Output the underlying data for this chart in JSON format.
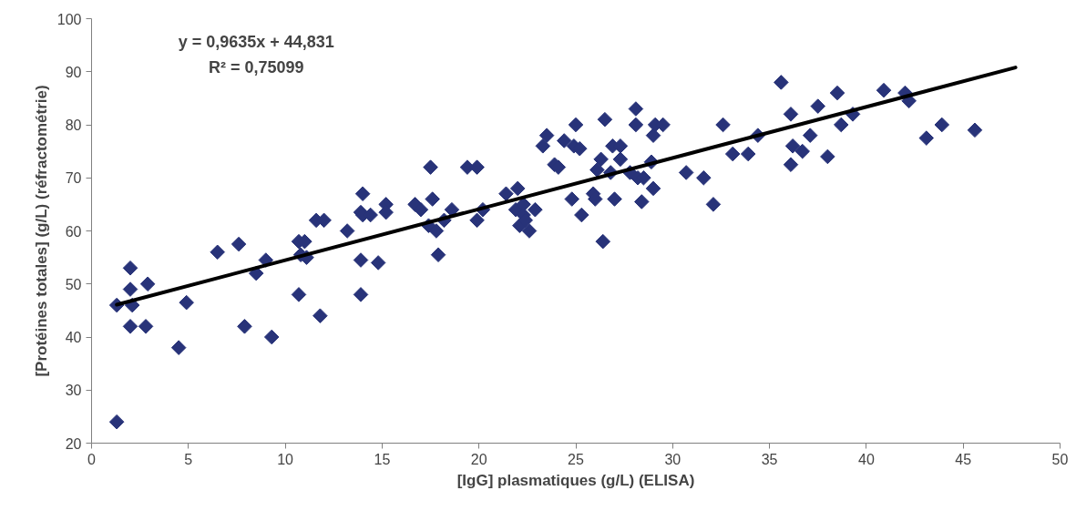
{
  "chart_data": {
    "type": "scatter",
    "xlabel": "[IgG] plasmatiques (g/L) (ELISA)",
    "ylabel": "[Protéines totales] (g/L) (réfractométrie)",
    "annotations": [
      "y = 0,9635x + 44,831",
      "R² = 0,75099"
    ],
    "xlim": [
      0,
      50
    ],
    "ylim": [
      20,
      100
    ],
    "xticks": [
      0,
      5,
      10,
      15,
      20,
      25,
      30,
      35,
      40,
      45,
      50
    ],
    "yticks": [
      20,
      30,
      40,
      50,
      60,
      70,
      80,
      90,
      100
    ],
    "grid": false,
    "marker": "diamond",
    "series": [
      {
        "color": "#283379",
        "x": [
          1.3,
          1.3,
          2,
          2,
          2.1,
          2,
          2.9,
          2.8,
          4.5,
          4.9,
          6.5,
          7.6,
          7.9,
          8.5,
          9,
          9.3,
          10.7,
          11,
          10.8,
          11.1,
          10.7,
          11.6,
          12,
          11.8,
          13.2,
          13.9,
          14,
          14,
          14.4,
          13.9,
          13.9,
          14.8,
          15.2,
          15.2,
          16.7,
          17,
          17.4,
          17.6,
          17.5,
          17.8,
          17.9,
          18.2,
          18.6,
          19.4,
          19.9,
          19.9,
          20.2,
          21.4,
          21.9,
          22,
          22.1,
          22.3,
          22.3,
          22.4,
          22.6,
          22.9,
          23.3,
          23.5,
          23.9,
          24.1,
          24.4,
          24.8,
          24.9,
          25,
          25.2,
          25.3,
          25.9,
          26,
          26.1,
          26.3,
          26.4,
          26.5,
          26.8,
          26.9,
          27,
          27.3,
          27.3,
          27.8,
          28.1,
          28.1,
          28.2,
          28.4,
          28.5,
          28.9,
          29,
          29,
          29.1,
          29.5,
          30.7,
          31.6,
          32.1,
          32.6,
          33.1,
          33.9,
          34.4,
          35.6,
          36.1,
          36.1,
          36.2,
          36.7,
          37.1,
          37.5,
          38,
          38.5,
          38.7,
          39.3,
          40.9,
          42,
          42.2,
          43.1,
          43.9,
          45.6
        ],
        "values": [
          46,
          24,
          53,
          49,
          46,
          42,
          50,
          42,
          38,
          46.5,
          56,
          57.5,
          42,
          52,
          54.5,
          40,
          58,
          58,
          55.5,
          55,
          48,
          62,
          62,
          44,
          60,
          63.5,
          63,
          67,
          63,
          54.5,
          48,
          54,
          65,
          63.5,
          65,
          64,
          61,
          66,
          72,
          60,
          55.5,
          62,
          64,
          72,
          72,
          62,
          64,
          67,
          64,
          68,
          61,
          65,
          63,
          62,
          60,
          64,
          76,
          78,
          72.5,
          72,
          77,
          66,
          76,
          80,
          75.5,
          63,
          67,
          66,
          71.5,
          73.5,
          58,
          81,
          71,
          76,
          66,
          76,
          73.5,
          71,
          83,
          80,
          70,
          65.5,
          70,
          73,
          68,
          78,
          80,
          80,
          71,
          70,
          65,
          80,
          74.5,
          74.5,
          78,
          88,
          82,
          72.5,
          76,
          75,
          78,
          83.5,
          74,
          86,
          80,
          82,
          86.5,
          86,
          84.5,
          77.5,
          80,
          79
        ]
      },
      {
        "type": "line",
        "color": "#000000",
        "line_style": "solid",
        "marker": "none",
        "x": [
          1.3,
          47.7
        ],
        "values": [
          46.1,
          90.8
        ]
      }
    ]
  }
}
